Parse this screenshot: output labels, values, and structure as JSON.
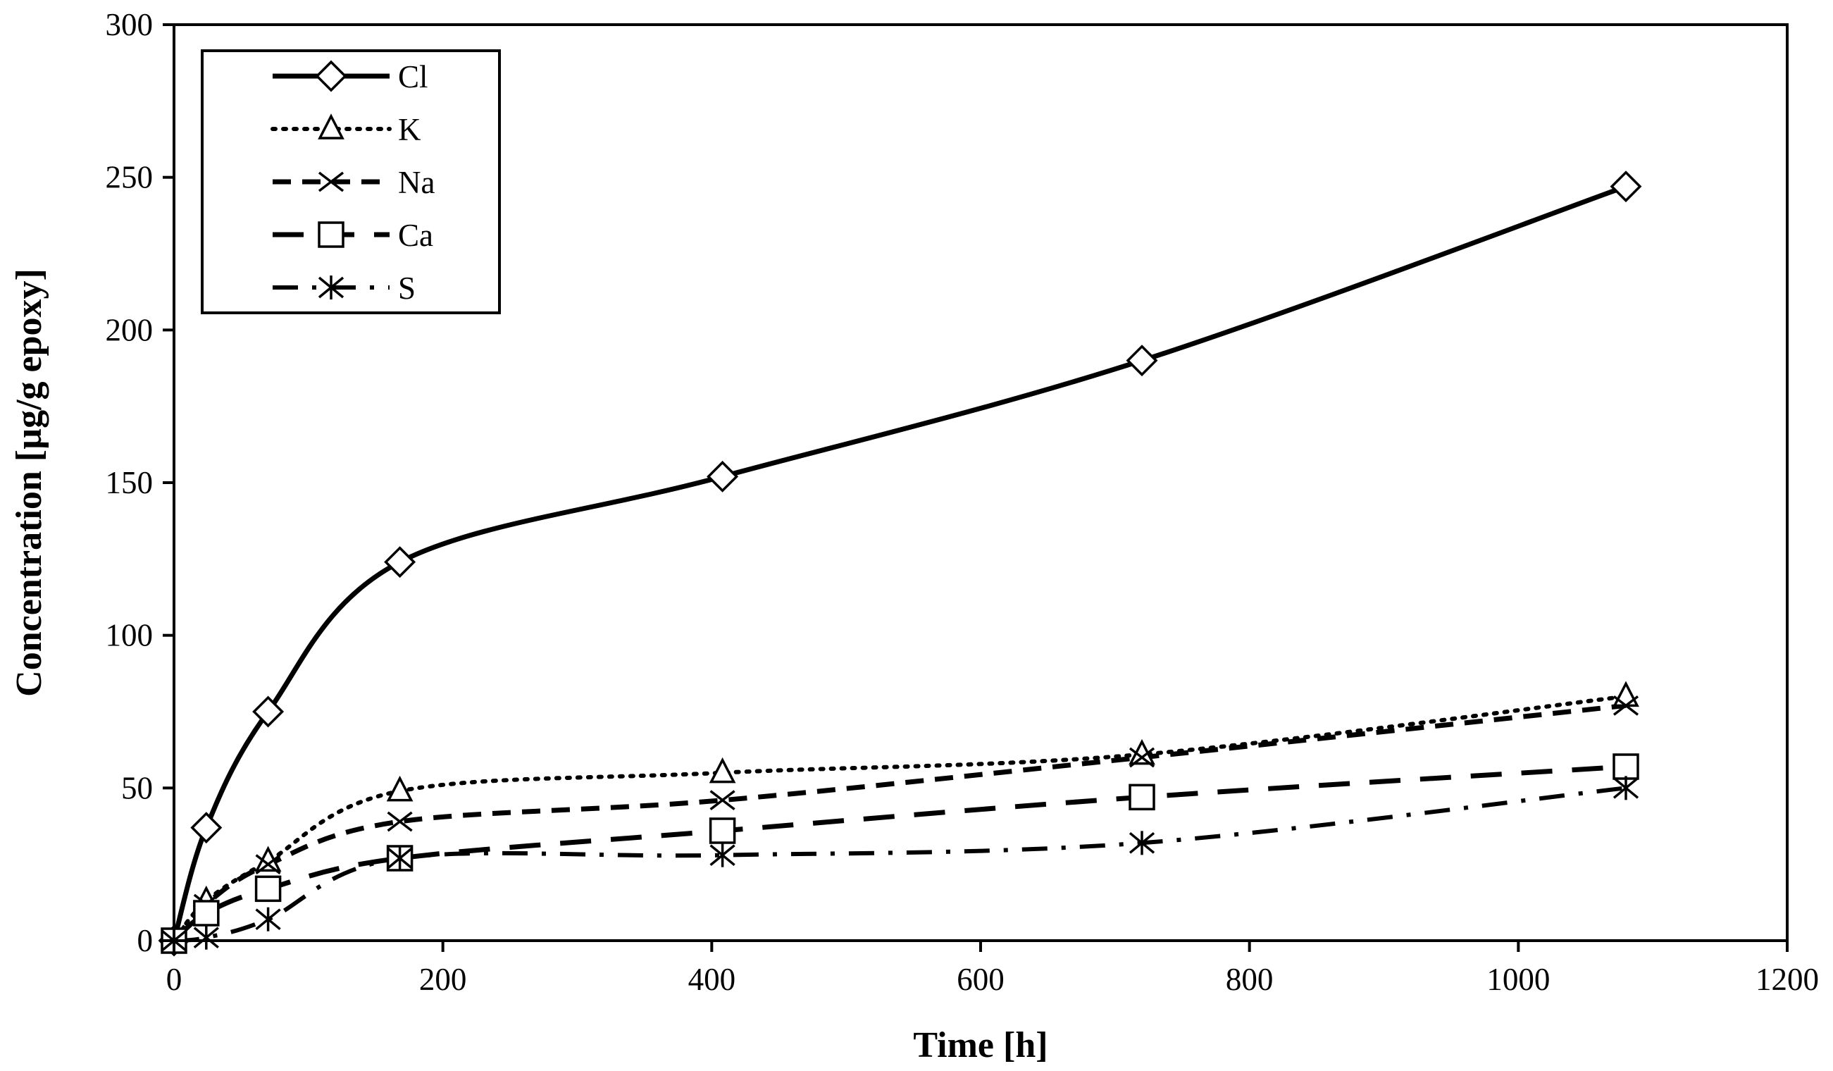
{
  "chart_data": {
    "type": "line",
    "title": "",
    "xlabel": "Time [h]",
    "ylabel": "Concentration [µg/g epoxy]",
    "xlim": [
      0,
      1200
    ],
    "ylim": [
      0,
      300
    ],
    "xticks": [
      0,
      200,
      400,
      600,
      800,
      1000,
      1200
    ],
    "yticks": [
      0,
      50,
      100,
      150,
      200,
      250,
      300
    ],
    "grid": false,
    "legend_position": "top-left",
    "x": [
      0,
      24,
      70,
      168,
      408,
      720,
      1080
    ],
    "series": [
      {
        "name": "Cl",
        "marker": "diamond",
        "line_style": "solid",
        "values": [
          0,
          37,
          75,
          124,
          152,
          190,
          247
        ]
      },
      {
        "name": "K",
        "marker": "triangle",
        "line_style": "dotted",
        "values": [
          0,
          13,
          26,
          49,
          55,
          61,
          80
        ]
      },
      {
        "name": "Na",
        "marker": "x",
        "line_style": "dashed",
        "values": [
          0,
          12,
          25,
          39,
          46,
          60,
          77
        ]
      },
      {
        "name": "Ca",
        "marker": "square",
        "line_style": "longdash",
        "values": [
          0,
          9,
          17,
          27,
          36,
          47,
          57
        ]
      },
      {
        "name": "S",
        "marker": "asterisk",
        "line_style": "dashdot",
        "values": [
          0,
          1,
          7,
          27,
          28,
          32,
          50
        ]
      }
    ]
  }
}
